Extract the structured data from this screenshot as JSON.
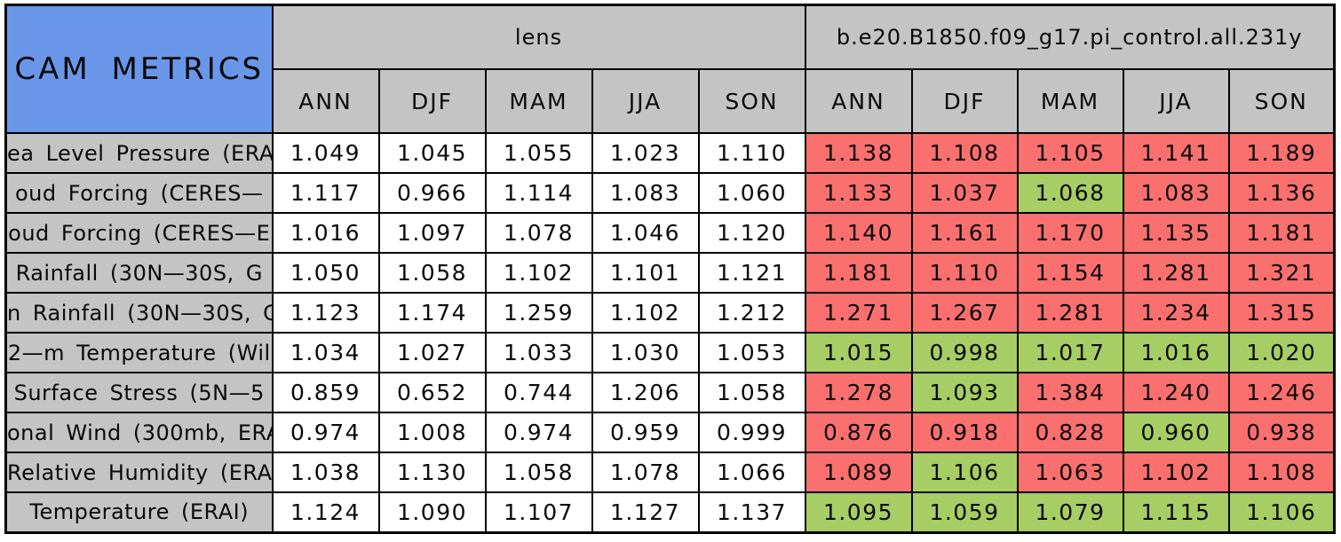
{
  "title": "CAM METRICS",
  "colors": {
    "title_bg": "#6A96EA",
    "header_bg": "#C4C4C4",
    "cell_red": "#F9706E",
    "cell_green": "#A6CE64",
    "border": "#000000"
  },
  "chart_data": {
    "type": "table",
    "title": "CAM METRICS",
    "column_groups": [
      {
        "label": "lens",
        "columns": [
          "ANN",
          "DJF",
          "MAM",
          "JJA",
          "SON"
        ]
      },
      {
        "label": "b.e20.B1850.f09_g17.pi_control.all.231y",
        "columns": [
          "ANN",
          "DJF",
          "MAM",
          "JJA",
          "SON"
        ]
      }
    ],
    "cell_colors_meaning": {
      "lens_cells": "white",
      "control_cells": "red or green"
    },
    "rows": [
      {
        "label": "ea Level Pressure (ERA",
        "lens": [
          "1.049",
          "1.045",
          "1.055",
          "1.023",
          "1.110"
        ],
        "control": [
          "1.138",
          "1.108",
          "1.105",
          "1.141",
          "1.189"
        ],
        "control_cell_colors": [
          "red",
          "red",
          "red",
          "red",
          "red"
        ]
      },
      {
        "label": "oud Forcing (CERES—",
        "lens": [
          "1.117",
          "0.966",
          "1.114",
          "1.083",
          "1.060"
        ],
        "control": [
          "1.133",
          "1.037",
          "1.068",
          "1.083",
          "1.136"
        ],
        "control_cell_colors": [
          "red",
          "red",
          "green",
          "red",
          "red"
        ]
      },
      {
        "label": "oud Forcing (CERES—E",
        "lens": [
          "1.016",
          "1.097",
          "1.078",
          "1.046",
          "1.120"
        ],
        "control": [
          "1.140",
          "1.161",
          "1.170",
          "1.135",
          "1.181"
        ],
        "control_cell_colors": [
          "red",
          "red",
          "red",
          "red",
          "red"
        ]
      },
      {
        "label": "Rainfall (30N—30S, G",
        "lens": [
          "1.050",
          "1.058",
          "1.102",
          "1.101",
          "1.121"
        ],
        "control": [
          "1.181",
          "1.110",
          "1.154",
          "1.281",
          "1.321"
        ],
        "control_cell_colors": [
          "red",
          "red",
          "red",
          "red",
          "red"
        ]
      },
      {
        "label": "n Rainfall (30N—30S, G",
        "lens": [
          "1.123",
          "1.174",
          "1.259",
          "1.102",
          "1.212"
        ],
        "control": [
          "1.271",
          "1.267",
          "1.281",
          "1.234",
          "1.315"
        ],
        "control_cell_colors": [
          "red",
          "red",
          "red",
          "red",
          "red"
        ]
      },
      {
        "label": "2—m Temperature (Wil",
        "lens": [
          "1.034",
          "1.027",
          "1.033",
          "1.030",
          "1.053"
        ],
        "control": [
          "1.015",
          "0.998",
          "1.017",
          "1.016",
          "1.020"
        ],
        "control_cell_colors": [
          "green",
          "green",
          "green",
          "green",
          "green"
        ]
      },
      {
        "label": "Surface Stress (5N—5",
        "lens": [
          "0.859",
          "0.652",
          "0.744",
          "1.206",
          "1.058"
        ],
        "control": [
          "1.278",
          "1.093",
          "1.384",
          "1.240",
          "1.246"
        ],
        "control_cell_colors": [
          "red",
          "green",
          "red",
          "red",
          "red"
        ]
      },
      {
        "label": "onal Wind (300mb, ERA",
        "lens": [
          "0.974",
          "1.008",
          "0.974",
          "0.959",
          "0.999"
        ],
        "control": [
          "0.876",
          "0.918",
          "0.828",
          "0.960",
          "0.938"
        ],
        "control_cell_colors": [
          "red",
          "red",
          "red",
          "green",
          "red"
        ]
      },
      {
        "label": "Relative Humidity (ERAI",
        "lens": [
          "1.038",
          "1.130",
          "1.058",
          "1.078",
          "1.066"
        ],
        "control": [
          "1.089",
          "1.106",
          "1.063",
          "1.102",
          "1.108"
        ],
        "control_cell_colors": [
          "red",
          "green",
          "red",
          "red",
          "red"
        ]
      },
      {
        "label": "Temperature (ERAI)",
        "lens": [
          "1.124",
          "1.090",
          "1.107",
          "1.127",
          "1.137"
        ],
        "control": [
          "1.095",
          "1.059",
          "1.079",
          "1.115",
          "1.106"
        ],
        "control_cell_colors": [
          "green",
          "green",
          "green",
          "green",
          "green"
        ]
      }
    ]
  }
}
